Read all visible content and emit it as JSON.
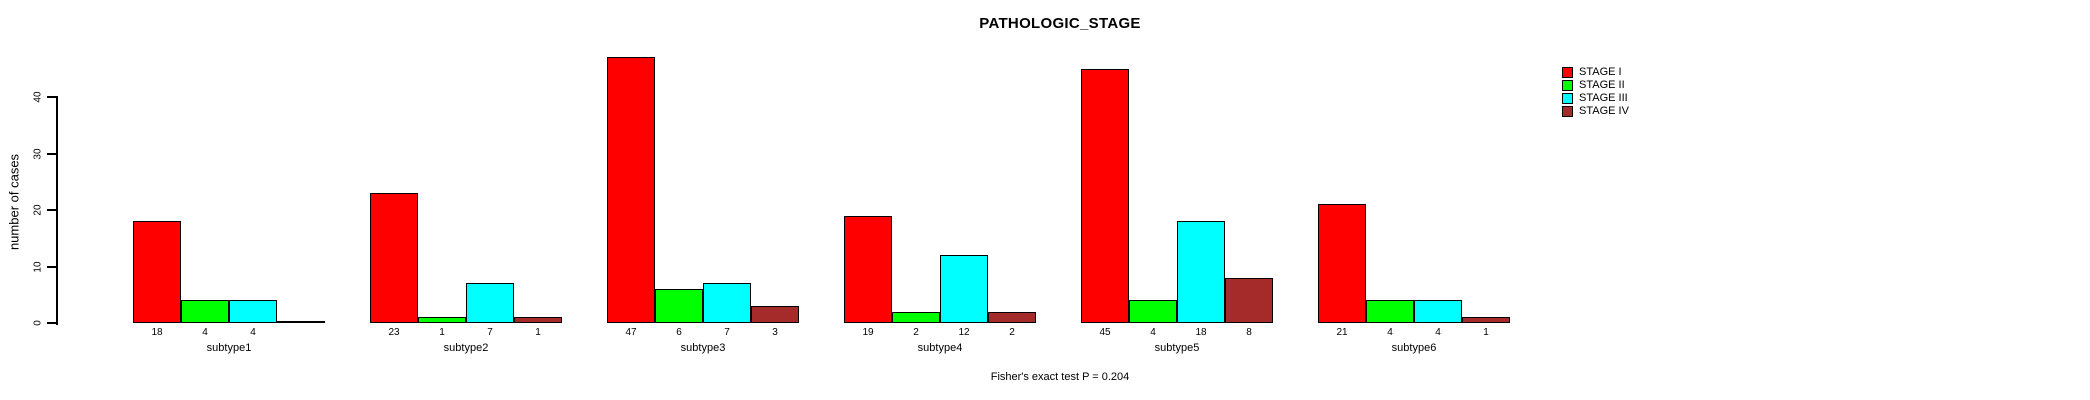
{
  "chart_data": {
    "type": "bar",
    "title": "PATHOLOGIC_STAGE",
    "ylabel": "number of cases",
    "xlabel": "",
    "caption": "Fisher's exact test P = 0.204",
    "categories": [
      "subtype1",
      "subtype2",
      "subtype3",
      "subtype4",
      "subtype5",
      "subtype6"
    ],
    "series": [
      {
        "name": "STAGE I",
        "color": "#ff0000",
        "values": [
          18,
          23,
          47,
          19,
          45,
          21
        ]
      },
      {
        "name": "STAGE II",
        "color": "#00ff00",
        "values": [
          4,
          1,
          6,
          2,
          4,
          4
        ]
      },
      {
        "name": "STAGE III",
        "color": "#00ffff",
        "values": [
          4,
          7,
          7,
          12,
          18,
          4
        ]
      },
      {
        "name": "STAGE IV",
        "color": "#a52a2a",
        "values": [
          0,
          1,
          3,
          2,
          8,
          1
        ]
      }
    ],
    "yticks": [
      0,
      10,
      20,
      30,
      40
    ],
    "ylim": [
      0,
      47
    ],
    "grid": false,
    "legend_position": "top-right",
    "bar_value_labels": true,
    "axis_color": "#000000",
    "background_color": "#ffffff"
  }
}
